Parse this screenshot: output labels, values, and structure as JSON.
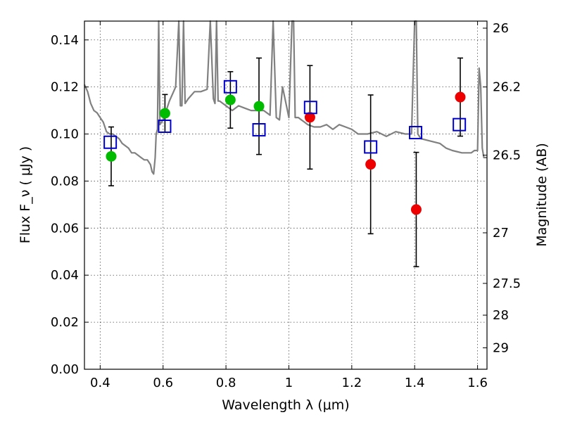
{
  "chart_data": {
    "type": "scatter",
    "title": "",
    "xlabel": "Wavelength  λ (μm)",
    "ylabel": "Flux  F_ν  ( μJy )",
    "ylabel_right": "Magnitude (AB)",
    "xlim": [
      0.35,
      1.63
    ],
    "ylim": [
      0.0,
      0.148
    ],
    "grid": true,
    "x_ticks": [
      0.4,
      0.6,
      0.8,
      1.0,
      1.2,
      1.4,
      1.6
    ],
    "x_tick_labels": [
      "0.4",
      "0.6",
      "0.8",
      "1",
      "1.2",
      "1.4",
      "1.6"
    ],
    "y_ticks": [
      0.0,
      0.02,
      0.04,
      0.06,
      0.08,
      0.1,
      0.12,
      0.14
    ],
    "y_tick_labels": [
      "0.00",
      "0.02",
      "0.04",
      "0.06",
      "0.08",
      "0.10",
      "0.12",
      "0.14"
    ],
    "mag_ticks": [
      {
        "label": "26",
        "flux": 0.145
      },
      {
        "label": "26.2",
        "flux": 0.12
      },
      {
        "label": "26.5",
        "flux": 0.091
      },
      {
        "label": "27",
        "flux": 0.058
      },
      {
        "label": "27.5",
        "flux": 0.0365
      },
      {
        "label": "28",
        "flux": 0.023
      },
      {
        "label": "29",
        "flux": 0.0091
      }
    ],
    "colors": {
      "observed_green": "#00bb00",
      "observed_red": "#ee0000",
      "model": "#0000cc",
      "spectrum": "#808080",
      "errorbar": "#000000"
    },
    "series": [
      {
        "name": "observed-green",
        "kind": "circle",
        "points": [
          {
            "x": 0.435,
            "y": 0.0905,
            "err": 0.0125
          },
          {
            "x": 0.606,
            "y": 0.1088,
            "err": 0.008
          },
          {
            "x": 0.814,
            "y": 0.1145,
            "err": 0.012
          },
          {
            "x": 0.905,
            "y": 0.1118,
            "err": 0.0205
          }
        ]
      },
      {
        "name": "observed-red",
        "kind": "circle",
        "points": [
          {
            "x": 1.067,
            "y": 0.1071,
            "err": 0.022
          },
          {
            "x": 1.26,
            "y": 0.0871,
            "err": 0.0295
          },
          {
            "x": 1.405,
            "y": 0.0679,
            "err": 0.0243
          },
          {
            "x": 1.545,
            "y": 0.1157,
            "err": 0.0166
          }
        ]
      },
      {
        "name": "model-photometry",
        "kind": "square",
        "points": [
          {
            "x": 0.432,
            "y": 0.0965
          },
          {
            "x": 0.605,
            "y": 0.1033
          },
          {
            "x": 0.814,
            "y": 0.1201
          },
          {
            "x": 0.905,
            "y": 0.1018
          },
          {
            "x": 1.069,
            "y": 0.1113
          },
          {
            "x": 1.26,
            "y": 0.0945
          },
          {
            "x": 1.403,
            "y": 0.1006
          },
          {
            "x": 1.542,
            "y": 0.104
          }
        ]
      },
      {
        "name": "model-spectrum",
        "kind": "line",
        "x": [
          0.35,
          0.36,
          0.37,
          0.38,
          0.39,
          0.4,
          0.41,
          0.42,
          0.43,
          0.44,
          0.45,
          0.46,
          0.47,
          0.48,
          0.49,
          0.5,
          0.51,
          0.52,
          0.53,
          0.54,
          0.55,
          0.56,
          0.565,
          0.57,
          0.575,
          0.578,
          0.582,
          0.586,
          0.59,
          0.6,
          0.62,
          0.64,
          0.65,
          0.655,
          0.66,
          0.665,
          0.67,
          0.68,
          0.7,
          0.72,
          0.74,
          0.75,
          0.76,
          0.765,
          0.77,
          0.775,
          0.78,
          0.8,
          0.82,
          0.84,
          0.86,
          0.88,
          0.9,
          0.92,
          0.94,
          0.95,
          0.96,
          0.97,
          0.98,
          1.0,
          1.01,
          1.015,
          1.02,
          1.03,
          1.04,
          1.05,
          1.06,
          1.08,
          1.1,
          1.12,
          1.14,
          1.16,
          1.18,
          1.2,
          1.22,
          1.25,
          1.28,
          1.31,
          1.34,
          1.37,
          1.39,
          1.4,
          1.405,
          1.41,
          1.42,
          1.45,
          1.48,
          1.5,
          1.52,
          1.55,
          1.58,
          1.59,
          1.6,
          1.605,
          1.61,
          1.615,
          1.62,
          1.63
        ],
        "y": [
          0.121,
          0.118,
          0.113,
          0.11,
          0.109,
          0.107,
          0.105,
          0.101,
          0.1,
          0.1,
          0.099,
          0.098,
          0.096,
          0.095,
          0.094,
          0.092,
          0.092,
          0.091,
          0.09,
          0.089,
          0.089,
          0.087,
          0.084,
          0.083,
          0.09,
          0.1,
          0.102,
          0.148,
          0.104,
          0.106,
          0.114,
          0.12,
          0.148,
          0.112,
          0.112,
          0.148,
          0.113,
          0.115,
          0.118,
          0.118,
          0.119,
          0.148,
          0.115,
          0.113,
          0.148,
          0.114,
          0.114,
          0.112,
          0.11,
          0.112,
          0.111,
          0.11,
          0.11,
          0.11,
          0.108,
          0.148,
          0.107,
          0.106,
          0.12,
          0.107,
          0.148,
          0.148,
          0.107,
          0.107,
          0.106,
          0.105,
          0.104,
          0.103,
          0.103,
          0.104,
          0.102,
          0.104,
          0.103,
          0.102,
          0.1,
          0.1,
          0.101,
          0.099,
          0.101,
          0.1,
          0.1,
          0.148,
          0.148,
          0.1,
          0.098,
          0.097,
          0.096,
          0.094,
          0.093,
          0.092,
          0.092,
          0.093,
          0.093,
          0.128,
          0.12,
          0.094,
          0.09,
          0.09
        ]
      }
    ]
  }
}
